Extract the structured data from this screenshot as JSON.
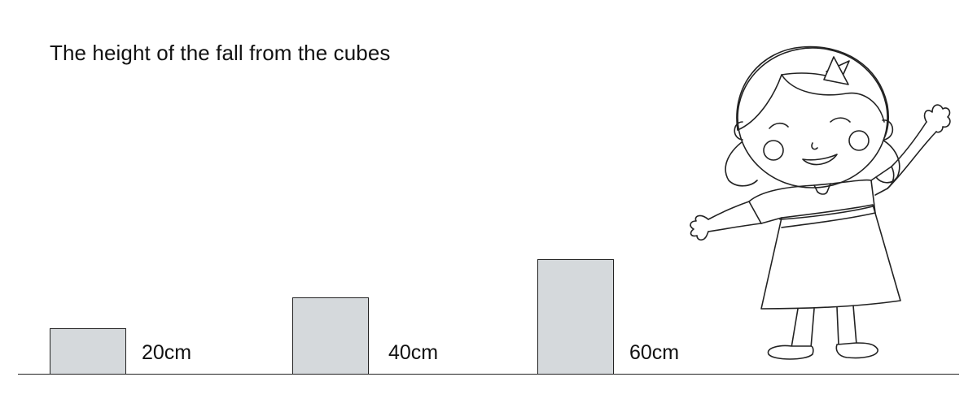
{
  "title": "The height of the fall from the cubes",
  "cubes": [
    {
      "label": "20cm",
      "height_cm": 20
    },
    {
      "label": "40cm",
      "height_cm": 40
    },
    {
      "label": "60cm",
      "height_cm": 60
    }
  ],
  "colors": {
    "cube_fill": "#d5d9dc",
    "outline": "#222222",
    "background": "#ffffff"
  },
  "illustration": {
    "icon": "girl-waving-icon"
  }
}
